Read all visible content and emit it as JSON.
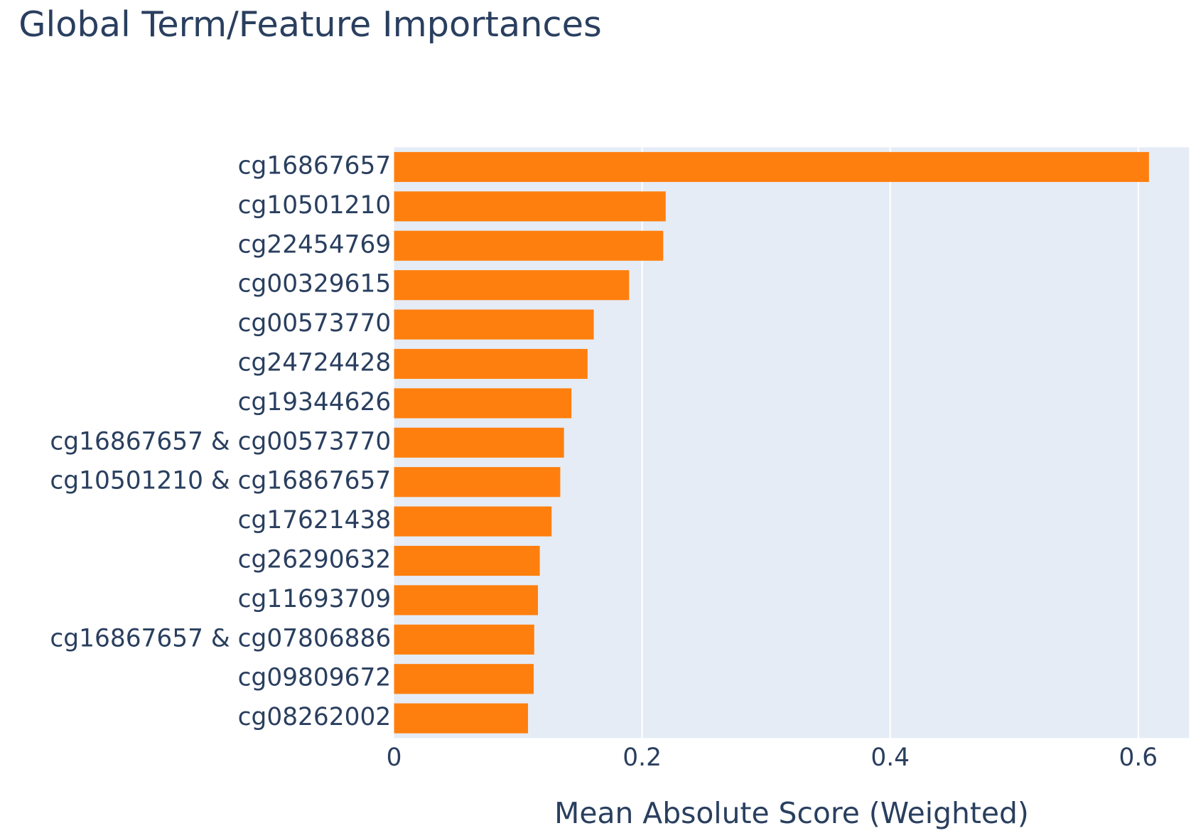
{
  "chart_data": {
    "type": "barh",
    "title": "Global Term/Feature Importances",
    "x_label": "Mean Absolute Score (Weighted)",
    "categories": [
      "cg16867657",
      "cg10501210",
      "cg22454769",
      "cg00329615",
      "cg00573770",
      "cg24724428",
      "cg19344626",
      "cg16867657 & cg00573770",
      "cg10501210 & cg16867657",
      "cg17621438",
      "cg26290632",
      "cg11693709",
      "cg16867657 & cg07806886",
      "cg09809672",
      "cg08262002"
    ],
    "values": [
      0.6086,
      0.219,
      0.217,
      0.1895,
      0.161,
      0.156,
      0.143,
      0.137,
      0.134,
      0.127,
      0.1175,
      0.116,
      0.113,
      0.1126,
      0.108
    ],
    "color": "#ff7f0e",
    "background": "#e5ecf6",
    "xlim": [
      0,
      0.641
    ],
    "xticks": [
      0,
      0.2,
      0.4,
      0.6
    ],
    "grid": true
  }
}
